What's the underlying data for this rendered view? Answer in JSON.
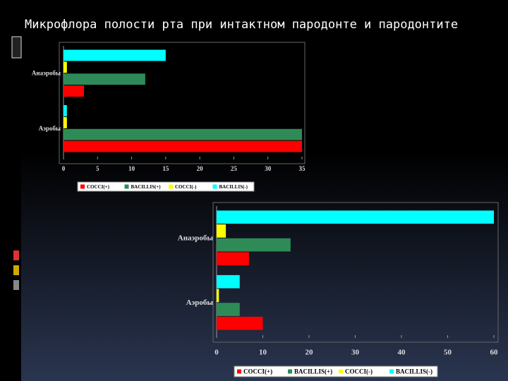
{
  "title": "Микрофлора полости рта при интактном пародонте и пародонтите",
  "chart_data": [
    {
      "type": "hbar",
      "categories": [
        "Аэробы",
        "Анаэробы"
      ],
      "series": [
        {
          "name": "COCCI(+)",
          "color": "#ff0000",
          "values": [
            35,
            3
          ]
        },
        {
          "name": "BACILLIS(+)",
          "color": "#2e8b57",
          "values": [
            35,
            12
          ]
        },
        {
          "name": "COCCI(-)",
          "color": "#ffff00",
          "values": [
            0.5,
            0.5
          ]
        },
        {
          "name": "BACILLIS(-)",
          "color": "#00ffff",
          "values": [
            0.5,
            15
          ]
        }
      ],
      "xlim": [
        0,
        35
      ],
      "xticks": [
        0,
        5,
        10,
        15,
        20,
        25,
        30,
        35
      ],
      "legend": "bottom"
    },
    {
      "type": "hbar",
      "categories": [
        "Аэробы",
        "Анаэробы"
      ],
      "series": [
        {
          "name": "COCCI(+)",
          "color": "#ff0000",
          "values": [
            10,
            7
          ]
        },
        {
          "name": "BACILLIS(+)",
          "color": "#2e8b57",
          "values": [
            5,
            16
          ]
        },
        {
          "name": "COCCI(-)",
          "color": "#ffff00",
          "values": [
            0.5,
            2
          ]
        },
        {
          "name": "BACILLIS(-)",
          "color": "#00ffff",
          "values": [
            5,
            60
          ]
        }
      ],
      "xlim": [
        0,
        60
      ],
      "xticks": [
        0,
        10,
        20,
        30,
        40,
        50,
        60
      ],
      "legend": "bottom"
    }
  ]
}
